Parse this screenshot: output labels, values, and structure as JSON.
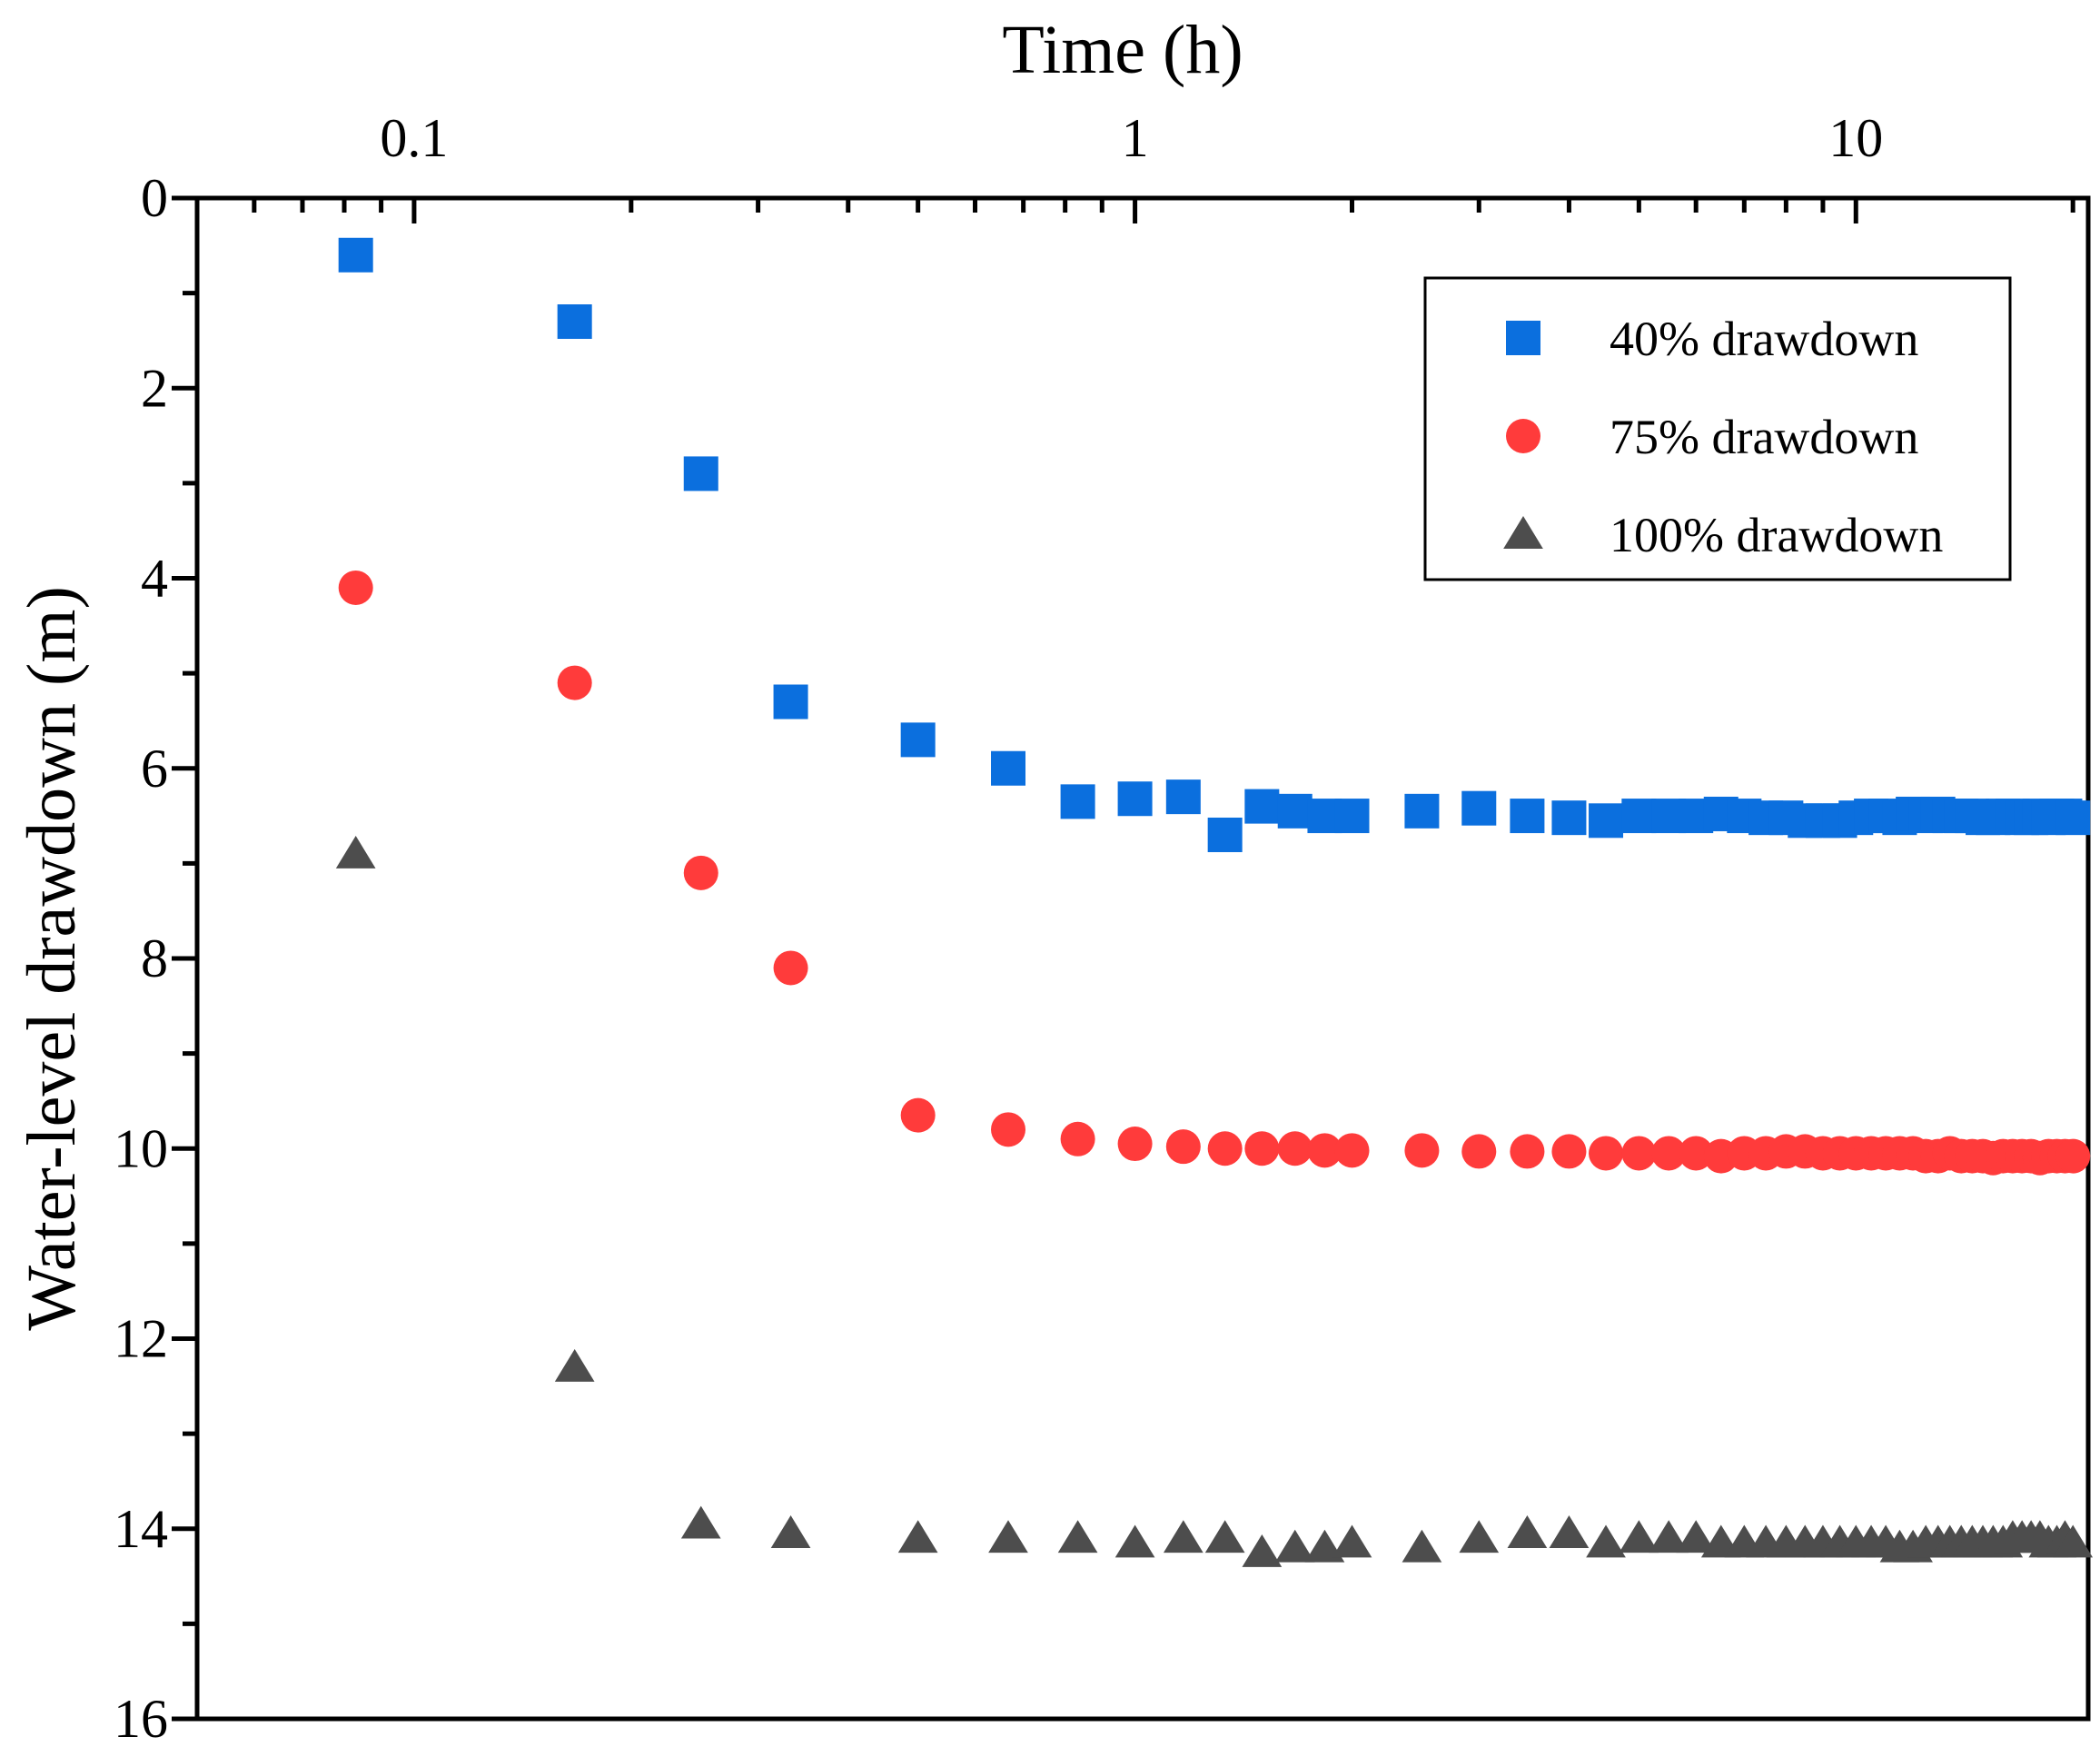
{
  "chart_data": {
    "type": "scatter",
    "title": "",
    "xlabel": "Time (h)",
    "ylabel": "Water-level drawdown (m)",
    "xscale": "log",
    "xlim": [
      0.05,
      21
    ],
    "ylim": [
      0,
      16
    ],
    "y_inverted": true,
    "x_axis_position": "top",
    "x_ticks": [
      0.1,
      1,
      10
    ],
    "x_tick_labels": [
      "0.1",
      "1",
      "10"
    ],
    "y_ticks": [
      0,
      2,
      4,
      6,
      8,
      10,
      12,
      14,
      16
    ],
    "y_tick_labels": [
      "0",
      "2",
      "4",
      "6",
      "8",
      "10",
      "12",
      "14",
      "16"
    ],
    "grid": false,
    "legend_position": "top-right",
    "series": [
      {
        "name": "40% drawdown",
        "marker": "square",
        "color": "#0b6fde",
        "x": [
          0.083,
          0.167,
          0.25,
          0.333,
          0.5,
          0.667,
          0.833,
          1.0,
          1.167,
          1.333,
          1.5,
          1.667,
          1.833,
          2.0,
          2.5,
          3.0,
          3.5,
          4.0,
          4.5,
          5.0,
          5.5,
          6.0,
          6.5,
          7.0,
          7.5,
          8.0,
          8.5,
          9.0,
          9.5,
          10.0,
          10.5,
          11.0,
          11.5,
          12.0,
          12.5,
          13.0,
          13.5,
          14.0,
          14.5,
          15.0,
          15.5,
          16.0,
          16.5,
          17.0,
          17.5,
          18.0,
          18.5,
          19.0,
          19.5,
          20.0
        ],
        "y": [
          0.6,
          1.3,
          2.9,
          5.3,
          5.7,
          6.0,
          6.35,
          6.32,
          6.3,
          6.7,
          6.4,
          6.45,
          6.5,
          6.5,
          6.45,
          6.42,
          6.5,
          6.52,
          6.55,
          6.5,
          6.5,
          6.5,
          6.48,
          6.5,
          6.52,
          6.52,
          6.55,
          6.55,
          6.55,
          6.52,
          6.5,
          6.5,
          6.52,
          6.48,
          6.5,
          6.48,
          6.5,
          6.5,
          6.5,
          6.52,
          6.52,
          6.5,
          6.5,
          6.52,
          6.52,
          6.5,
          6.52,
          6.5,
          6.5,
          6.52
        ]
      },
      {
        "name": "75% drawdown",
        "marker": "circle",
        "color": "#ff3b3b",
        "x": [
          0.083,
          0.167,
          0.25,
          0.333,
          0.5,
          0.667,
          0.833,
          1.0,
          1.167,
          1.333,
          1.5,
          1.667,
          1.833,
          2.0,
          2.5,
          3.0,
          3.5,
          4.0,
          4.5,
          5.0,
          5.5,
          6.0,
          6.5,
          7.0,
          7.5,
          8.0,
          8.5,
          9.0,
          9.5,
          10.0,
          10.5,
          11.0,
          11.5,
          12.0,
          12.5,
          13.0,
          13.5,
          14.0,
          14.5,
          15.0,
          15.5,
          16.0,
          16.5,
          17.0,
          17.5,
          18.0,
          18.5,
          19.0,
          19.5,
          20.0
        ],
        "y": [
          4.1,
          5.1,
          7.1,
          8.1,
          9.65,
          9.8,
          9.9,
          9.95,
          9.98,
          10.0,
          10.0,
          10.0,
          10.02,
          10.02,
          10.02,
          10.03,
          10.03,
          10.03,
          10.05,
          10.05,
          10.05,
          10.05,
          10.08,
          10.05,
          10.05,
          10.03,
          10.03,
          10.05,
          10.05,
          10.05,
          10.05,
          10.05,
          10.05,
          10.05,
          10.08,
          10.08,
          10.05,
          10.08,
          10.08,
          10.08,
          10.1,
          10.08,
          10.08,
          10.08,
          10.08,
          10.1,
          10.08,
          10.08,
          10.08,
          10.08
        ]
      },
      {
        "name": "100% drawdown",
        "marker": "triangle",
        "color": "#4d4d4d",
        "x": [
          0.083,
          0.167,
          0.25,
          0.333,
          0.5,
          0.667,
          0.833,
          1.0,
          1.167,
          1.333,
          1.5,
          1.667,
          1.833,
          2.0,
          2.5,
          3.0,
          3.5,
          4.0,
          4.5,
          5.0,
          5.5,
          6.0,
          6.5,
          7.0,
          7.5,
          8.0,
          8.5,
          9.0,
          9.5,
          10.0,
          10.5,
          11.0,
          11.5,
          12.0,
          12.5,
          13.0,
          13.5,
          14.0,
          14.5,
          15.0,
          15.5,
          16.0,
          16.5,
          17.0,
          17.5,
          18.0,
          18.5,
          19.0,
          19.5,
          20.0
        ],
        "y": [
          6.9,
          12.3,
          13.95,
          14.05,
          14.1,
          14.1,
          14.1,
          14.15,
          14.1,
          14.1,
          14.25,
          14.2,
          14.2,
          14.15,
          14.2,
          14.1,
          14.05,
          14.05,
          14.15,
          14.1,
          14.1,
          14.1,
          14.15,
          14.15,
          14.15,
          14.15,
          14.15,
          14.15,
          14.15,
          14.15,
          14.15,
          14.15,
          14.2,
          14.2,
          14.15,
          14.15,
          14.15,
          14.15,
          14.15,
          14.15,
          14.15,
          14.15,
          14.1,
          14.1,
          14.1,
          14.1,
          14.15,
          14.15,
          14.1,
          14.15
        ]
      }
    ]
  }
}
